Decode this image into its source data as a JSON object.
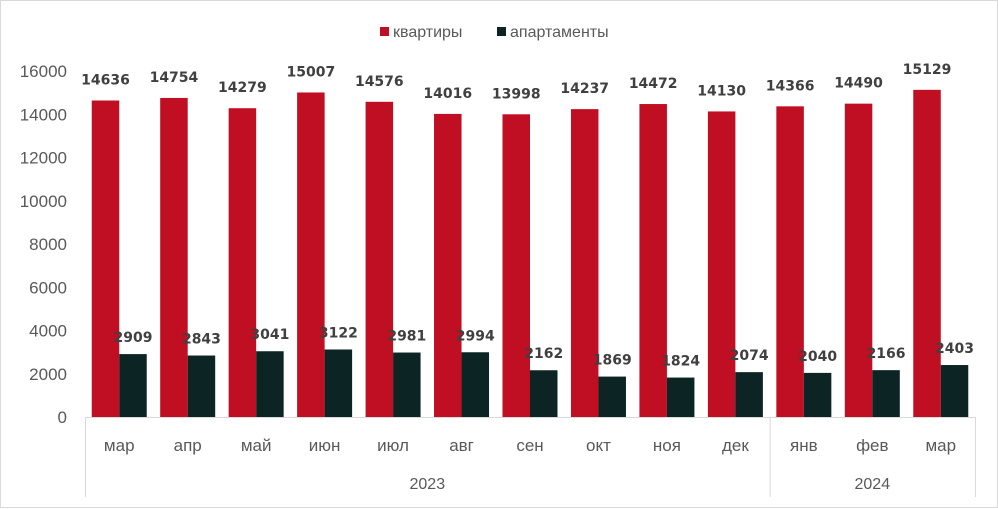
{
  "chart_data": {
    "type": "bar",
    "categories": [
      "мар",
      "апр",
      "май",
      "июн",
      "июл",
      "авг",
      "сен",
      "окт",
      "ноя",
      "дек",
      "янв",
      "фев",
      "мар"
    ],
    "year_groups": [
      {
        "label": "2023",
        "count": 10
      },
      {
        "label": "2024",
        "count": 3
      }
    ],
    "series": [
      {
        "name": "квартиры",
        "color": "#c00e23",
        "values": [
          14636,
          14754,
          14279,
          15007,
          14576,
          14016,
          13998,
          14237,
          14472,
          14130,
          14366,
          14490,
          15129
        ]
      },
      {
        "name": "апартаменты",
        "color": "#0d2425",
        "values": [
          2909,
          2843,
          3041,
          3122,
          2981,
          2994,
          2162,
          1869,
          1824,
          2074,
          2040,
          2166,
          2403
        ]
      }
    ],
    "yticks": [
      "0",
      "2000",
      "4000",
      "6000",
      "8000",
      "10000",
      "12000",
      "14000",
      "16000"
    ],
    "ylim": [
      0,
      16000
    ],
    "grid": false,
    "legend": "top-center",
    "data_labels": true
  }
}
